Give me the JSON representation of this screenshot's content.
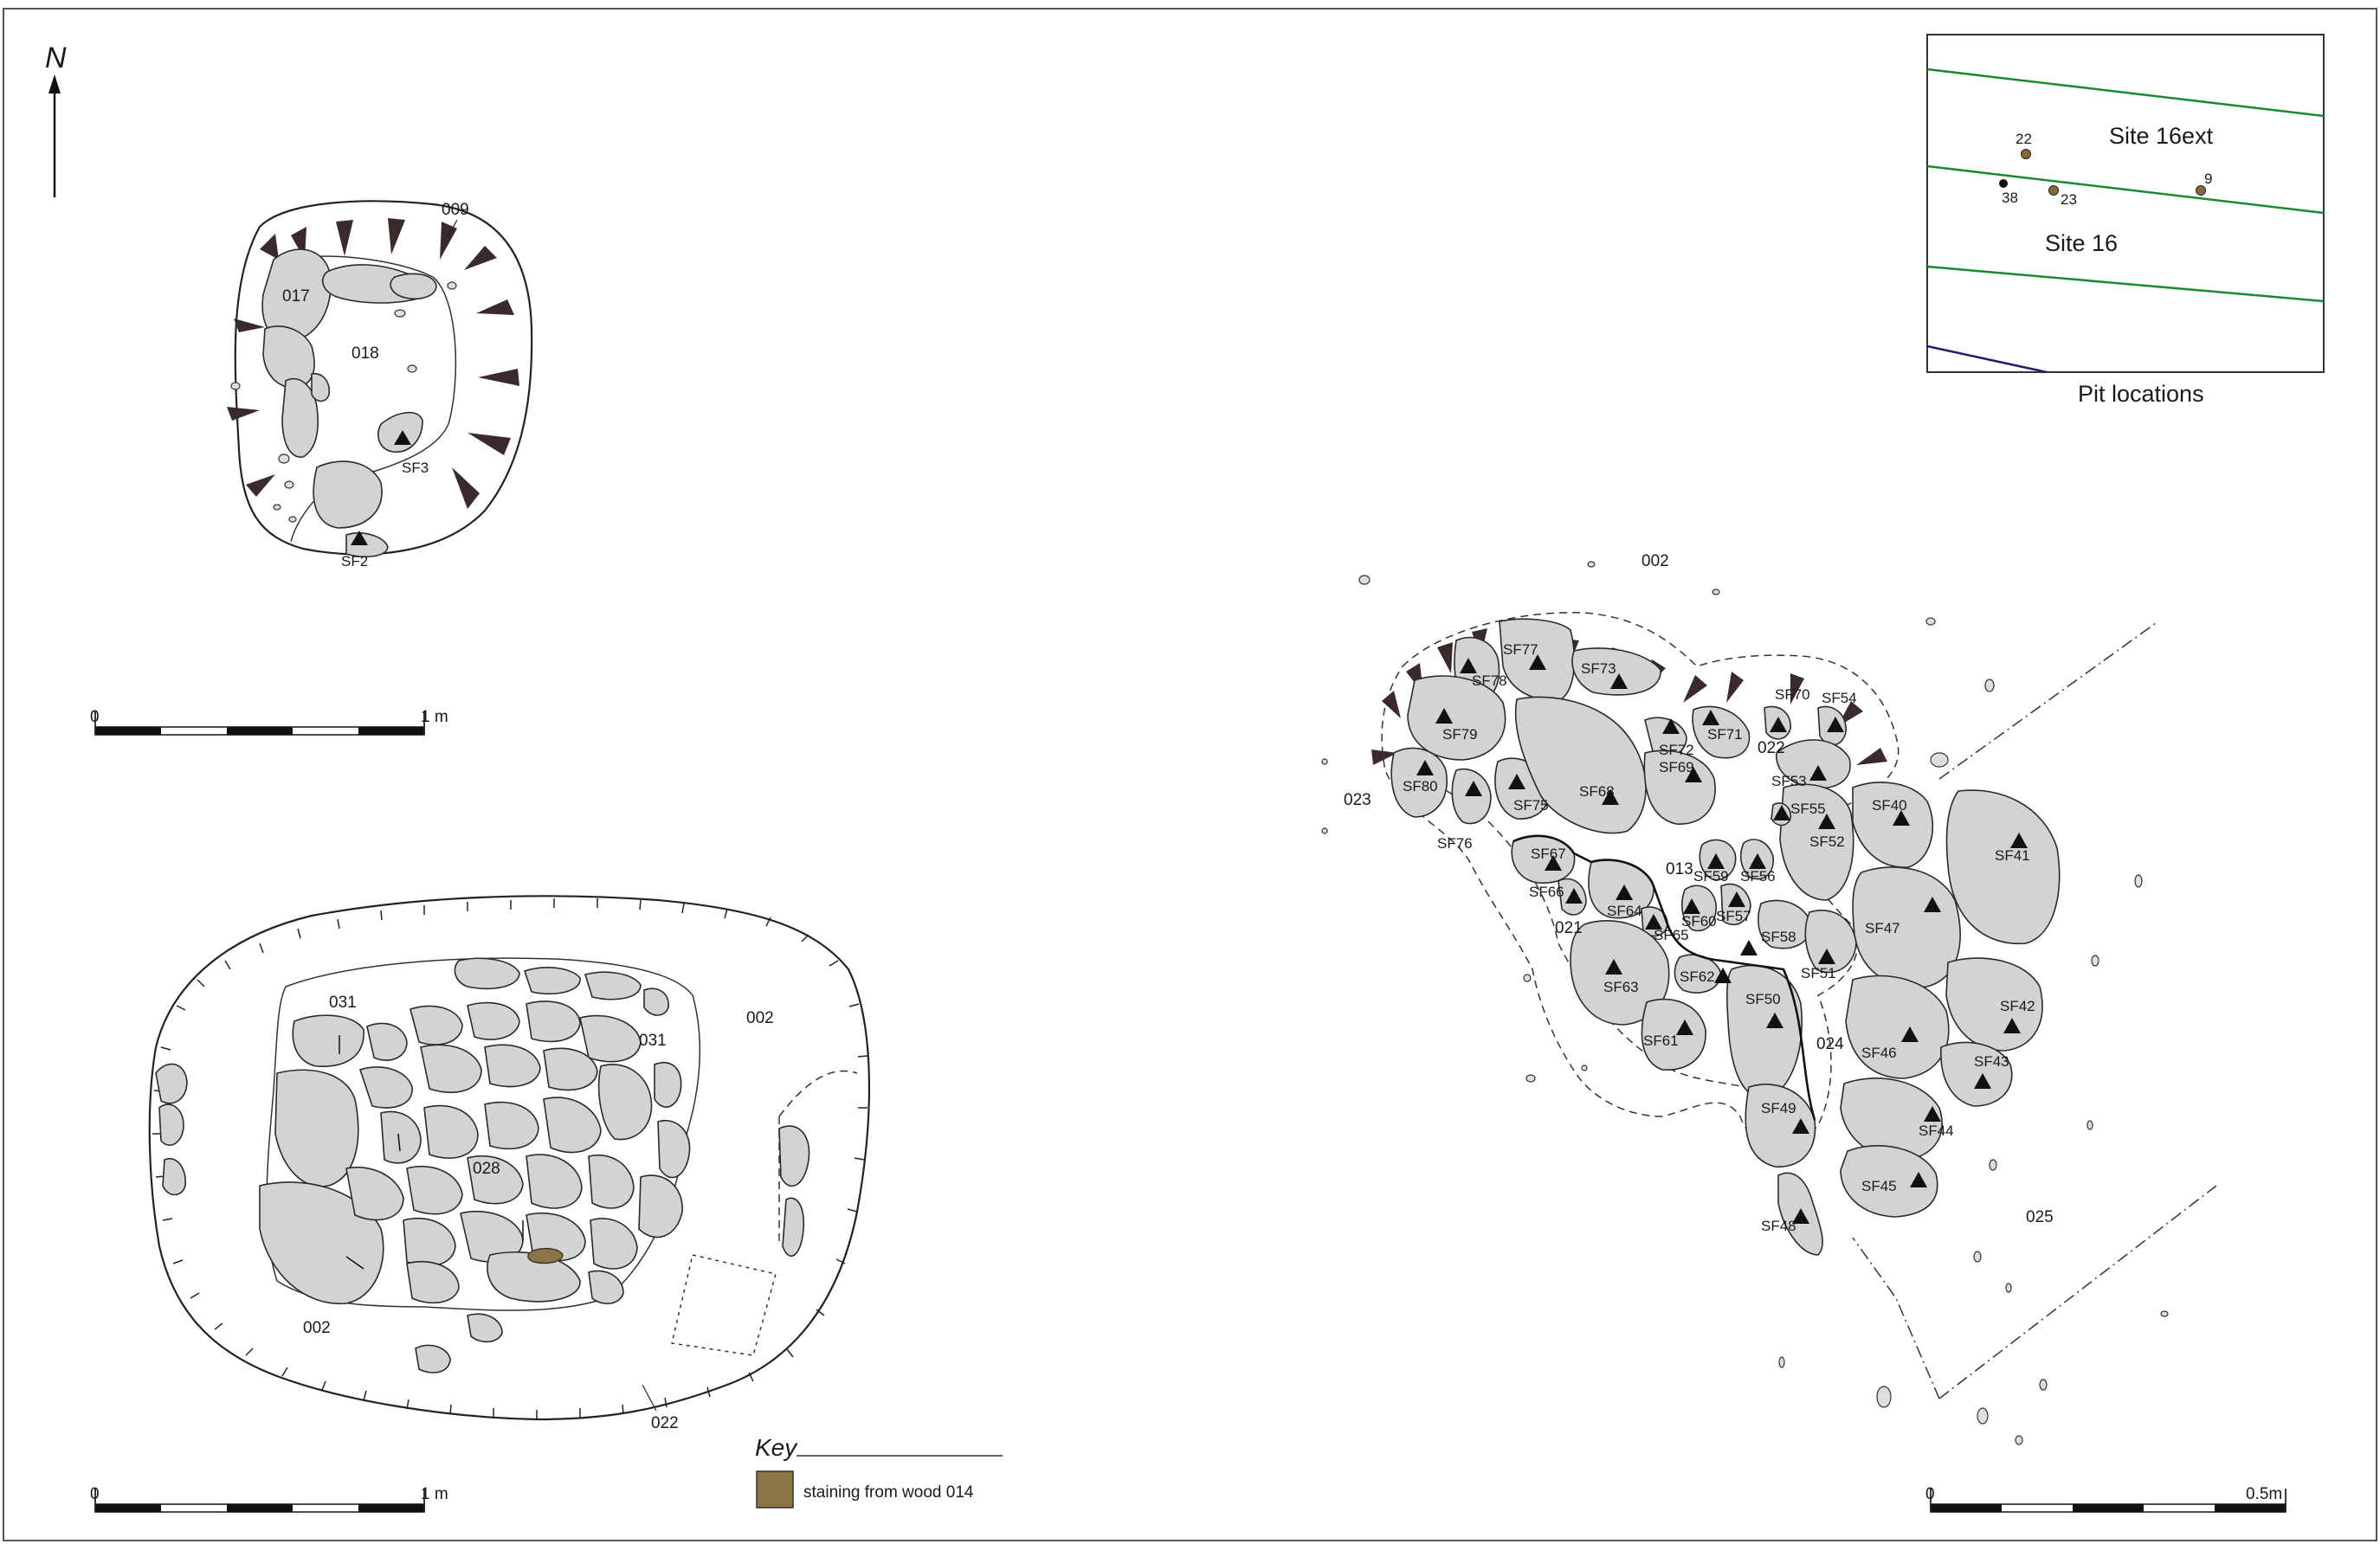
{
  "north": {
    "label": "N"
  },
  "plan_top_left": {
    "labels": [
      "009",
      "017",
      "018",
      "SF3",
      "SF2"
    ]
  },
  "plan_bottom_left": {
    "labels": [
      "031",
      "031",
      "002",
      "028",
      "002",
      "022"
    ]
  },
  "plan_right": {
    "labels": [
      "002",
      "023",
      "SF76",
      "021",
      "013",
      "022",
      "024",
      "025",
      "SF77",
      "SF78",
      "SF73",
      "SF79",
      "SF80",
      "SF75",
      "SF68",
      "SF72",
      "SF69",
      "SF71",
      "SF70",
      "SF54",
      "SF53",
      "SF55",
      "SF52",
      "SF40",
      "SF41",
      "SF67",
      "SF66",
      "SF64",
      "SF65",
      "SF59",
      "SF56",
      "SF60",
      "SF57",
      "SF58",
      "SF51",
      "SF47",
      "SF63",
      "SF62",
      "SF50",
      "SF61",
      "SF42",
      "SF46",
      "SF43",
      "SF49",
      "SF44",
      "SF45",
      "SF48"
    ]
  },
  "scale_bars": [
    {
      "start": "0",
      "end": "1 m"
    },
    {
      "start": "0",
      "end": "1 m"
    },
    {
      "start": "0",
      "end": "0.5m"
    }
  ],
  "inset": {
    "caption": "Pit locations",
    "site_labels": [
      "Site 16ext",
      "Site 16"
    ],
    "pits": [
      "22",
      "38",
      "23",
      "9"
    ],
    "line_colors": {
      "site_boundary": "#1a8a2e",
      "other_boundary": "#1c1f6e"
    },
    "pit_colors": {
      "brown": "#8a6a3a",
      "black": "#111111"
    }
  },
  "key": {
    "title": "Key",
    "items": [
      {
        "label": "staining from wood 014",
        "color": "#8b7545"
      }
    ]
  }
}
